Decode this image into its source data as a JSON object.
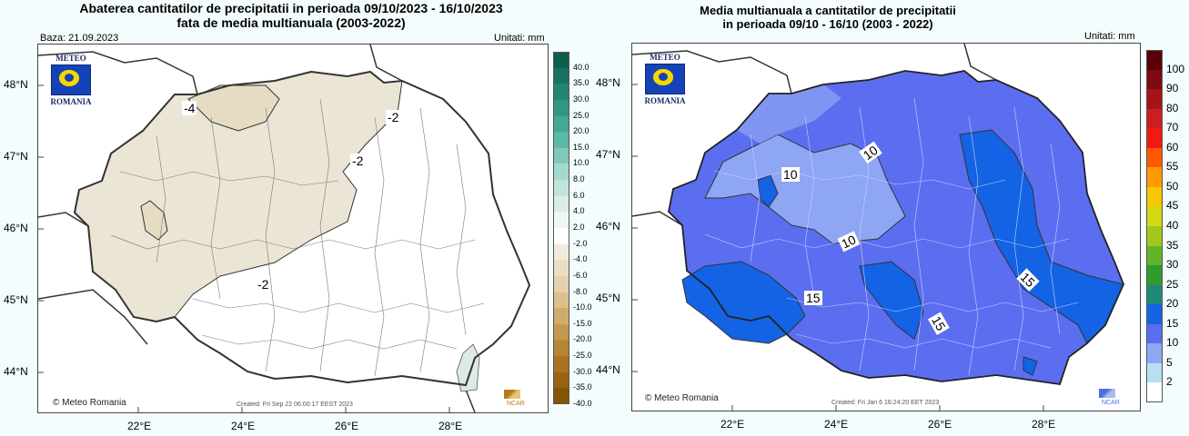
{
  "left_map": {
    "title_line1": "Abaterea cantitatilor de precipitatii in perioada 09/10/2023 - 16/10/2023",
    "title_line2": "fata de media multianuala (2003-2022)",
    "baza": "Baza: 21.09.2023",
    "units": "Unitati: mm",
    "logo_top": "METEO",
    "logo_bottom": "ROMANIA",
    "credit": "Meteo Romania",
    "created": "Created: Fri Sep 22 06:00:17 EEST 2023",
    "ncar": "NCAR",
    "lat_labels": [
      "48°N",
      "47°N",
      "46°N",
      "45°N",
      "44°N"
    ],
    "lon_labels": [
      "22°E",
      "24°E",
      "26°E",
      "28°E"
    ],
    "contour_labels": [
      "-4",
      "-2",
      "-2",
      "-2"
    ],
    "legend_labels": [
      "40.0",
      "35.0",
      "30.0",
      "25.0",
      "20.0",
      "15.0",
      "10.0",
      "8.0",
      "6.0",
      "4.0",
      "2.0",
      "-2.0",
      "-4.0",
      "-6.0",
      "-8.0",
      "-10.0",
      "-15.0",
      "-20.0",
      "-25.0",
      "-30.0",
      "-35.0",
      "-40.0"
    ],
    "legend_colors": [
      "#0e5e4e",
      "#17725f",
      "#228571",
      "#2f9883",
      "#42a994",
      "#5cb9a6",
      "#7ec9b9",
      "#a3d9cc",
      "#c1e4da",
      "#d9ece6",
      "#eef5f2",
      "#ffffff",
      "#f1ebdc",
      "#e9dec4",
      "#e2d1aa",
      "#d9c08d",
      "#cfac6e",
      "#c4984f",
      "#b78534",
      "#a9731f",
      "#986311",
      "#865406"
    ]
  },
  "right_map": {
    "title_line1": "Media multianuala a cantitatilor de precipitatii",
    "title_line2": "in perioada 09/10 - 16/10 (2003 - 2022)",
    "units": "Unitati: mm",
    "logo_top": "METEO",
    "logo_bottom": "ROMANIA",
    "credit": "Meteo Romania",
    "created": "Created: Fri Jan 6 16:24:20 EET 2023",
    "ncar": "NCAR",
    "lat_labels": [
      "48°N",
      "47°N",
      "46°N",
      "45°N",
      "44°N"
    ],
    "lon_labels": [
      "22°E",
      "24°E",
      "26°E",
      "28°E"
    ],
    "contour_labels": [
      "10",
      "10",
      "10",
      "15",
      "15",
      "15"
    ],
    "legend_labels": [
      "100",
      "90",
      "80",
      "70",
      "60",
      "55",
      "50",
      "45",
      "40",
      "35",
      "30",
      "25",
      "20",
      "15",
      "10",
      "5",
      "2"
    ],
    "legend_colors": [
      "#5a0008",
      "#7e0a12",
      "#a41418",
      "#cc1e1e",
      "#f01a12",
      "#ff5a00",
      "#ff9a00",
      "#f5c800",
      "#d6d812",
      "#a2c81c",
      "#62b428",
      "#2f9c2c",
      "#1e8a7a",
      "#1363e4",
      "#5a6ef0",
      "#8ea6f4",
      "#b8dff0",
      "#ffffff"
    ]
  }
}
